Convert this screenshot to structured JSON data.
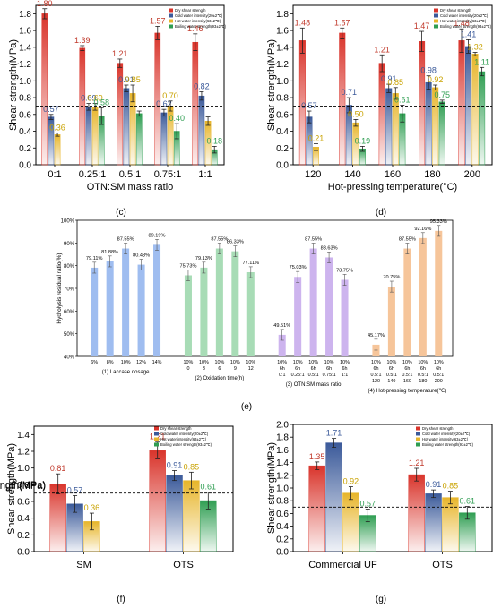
{
  "colors": {
    "dry": "#d9342b",
    "cold": "#3b5a9a",
    "hot": "#e7b52a",
    "boil": "#2f9e52",
    "ref_line": "#000000",
    "label_dry": "#c0392b",
    "label_cold": "#3b5a9a",
    "label_hot": "#c9a200",
    "label_boil": "#2f9e52"
  },
  "chart_data": [
    {
      "panel": "(c)",
      "type": "bar",
      "ylabel": "Shear strength(MPa)",
      "xlabel": "OTN:SM mass ratio",
      "ylim": [
        0,
        1.9
      ],
      "yticks": [
        "0.0",
        "0.2",
        "0.4",
        "0.6",
        "0.8",
        "1.0",
        "1.2",
        "1.4",
        "1.6",
        "1.8"
      ],
      "ref_line": 0.7,
      "categories": [
        "0:1",
        "0.25:1",
        "0.5:1",
        "0.75:1",
        "1:1"
      ],
      "legend": [
        "Dry shear strength",
        "Cold water intensity(20±2℃)",
        "Hot water intensity(63±2℃)",
        "Boiling water strength(93±2℃)"
      ],
      "series": [
        {
          "key": "dry",
          "values": [
            1.8,
            1.39,
            1.21,
            1.57,
            1.46
          ],
          "errors": [
            0.06,
            0.03,
            0.05,
            0.08,
            0.1
          ],
          "labels": [
            "1.80",
            "1.39",
            "1.21",
            "1.57",
            "1.46"
          ]
        },
        {
          "key": "cold",
          "values": [
            0.57,
            0.69,
            0.91,
            0.62,
            0.82
          ],
          "errors": [
            0.03,
            0.04,
            0.04,
            0.04,
            0.05
          ],
          "labels": [
            "0.57",
            "0.69",
            "0.91",
            "0.62",
            "0.82"
          ]
        },
        {
          "key": "hot",
          "values": [
            0.36,
            0.69,
            0.85,
            0.7,
            0.52
          ],
          "errors": [
            0.02,
            0.04,
            0.1,
            0.06,
            0.05
          ],
          "labels": [
            "0.36",
            "0.69",
            "0.85",
            "0.70",
            ""
          ]
        },
        {
          "key": "boil",
          "values": [
            null,
            0.58,
            0.61,
            0.4,
            0.18
          ],
          "errors": [
            0,
            0.1,
            0.03,
            0.09,
            0.04
          ],
          "labels": [
            "",
            "0.58",
            "",
            "0.40",
            "0.18"
          ]
        }
      ],
      "caption": "(c)"
    },
    {
      "panel": "(d)",
      "type": "bar",
      "ylabel": "Shear strength(MPa)",
      "xlabel": "Hot-pressing temperature(°C)",
      "ylim": [
        0,
        1.9
      ],
      "yticks": [
        "0.0",
        "0.2",
        "0.4",
        "0.6",
        "0.8",
        "1.0",
        "1.2",
        "1.4",
        "1.6",
        "1.8"
      ],
      "ref_line": 0.7,
      "categories": [
        "120",
        "140",
        "160",
        "180",
        "200"
      ],
      "legend": [
        "Dry shear strength",
        "Cold water intensity(20±2℃)",
        "Hot water intensity(63±2℃)",
        "Boiling water strength(93±2℃)"
      ],
      "series": [
        {
          "key": "dry",
          "values": [
            1.48,
            1.57,
            1.21,
            1.47,
            1.48
          ],
          "errors": [
            0.15,
            0.06,
            0.1,
            0.12,
            0.14
          ],
          "labels": [
            "1.48",
            "1.57",
            "1.21",
            "1.47",
            "1.48"
          ]
        },
        {
          "key": "cold",
          "values": [
            0.57,
            0.71,
            0.91,
            0.98,
            1.41
          ],
          "errors": [
            0.07,
            0.09,
            0.05,
            0.08,
            0.08
          ],
          "labels": [
            "0.57",
            "0.71",
            "0.91",
            "0.98",
            "1.41"
          ]
        },
        {
          "key": "hot",
          "values": [
            0.21,
            0.5,
            0.85,
            0.92,
            1.32
          ],
          "errors": [
            0.04,
            0.04,
            0.07,
            0.03,
            0.02
          ],
          "labels": [
            "0.21",
            "0.50",
            "0.85",
            "0.92",
            "1.32"
          ]
        },
        {
          "key": "boil",
          "values": [
            null,
            0.19,
            0.61,
            0.75,
            1.11
          ],
          "errors": [
            0,
            0.03,
            0.1,
            0.02,
            0.05
          ],
          "labels": [
            "",
            "0.19",
            "0.61",
            "0.75",
            "1.11"
          ]
        }
      ],
      "caption": "(d)"
    },
    {
      "panel": "(e)",
      "type": "bar",
      "ylabel": "Hydrolysis residual ratio(%)",
      "ylim": [
        40,
        100
      ],
      "yticks": [
        "40%",
        "50%",
        "60%",
        "70%",
        "80%",
        "90%",
        "100%"
      ],
      "groups": [
        {
          "name": "(1) Laccase dosage",
          "color": "#9fbdf0",
          "bars": [
            {
              "v": 79.11,
              "label": "79.11%",
              "tick": [
                "6%"
              ]
            },
            {
              "v": 81.88,
              "label": "81.88%",
              "tick": [
                "8%"
              ]
            },
            {
              "v": 87.55,
              "label": "87.55%",
              "tick": [
                "10%"
              ]
            },
            {
              "v": 80.43,
              "label": "80.43%",
              "tick": [
                "12%"
              ]
            },
            {
              "v": 89.19,
              "label": "89.19%",
              "tick": [
                "14%"
              ]
            }
          ]
        },
        {
          "name": "(2) Oxidation time(h)",
          "color": "#a8dcb6",
          "bars": [
            {
              "v": 75.73,
              "label": "75.73%",
              "tick": [
                "10%",
                "0"
              ]
            },
            {
              "v": 79.13,
              "label": "79.13%",
              "tick": [
                "10%",
                "3"
              ]
            },
            {
              "v": 87.55,
              "label": "87.55%",
              "tick": [
                "10%",
                "6"
              ]
            },
            {
              "v": 86.33,
              "label": "86.33%",
              "tick": [
                "10%",
                "9"
              ]
            },
            {
              "v": 77.11,
              "label": "77.11%",
              "tick": [
                "10%",
                "12"
              ]
            }
          ]
        },
        {
          "name": "(3) OTN:SM mass ratio",
          "color": "#cdb4ee",
          "bars": [
            {
              "v": 49.51,
              "label": "49.51%",
              "tick": [
                "10%",
                "6h",
                "0:1"
              ]
            },
            {
              "v": 75.03,
              "label": "75.03%",
              "tick": [
                "10%",
                "6h",
                "0.25:1"
              ]
            },
            {
              "v": 87.55,
              "label": "87.55%",
              "tick": [
                "10%",
                "6h",
                "0.5:1"
              ]
            },
            {
              "v": 83.63,
              "label": "83.63%",
              "tick": [
                "10%",
                "6h",
                "0.75:1"
              ]
            },
            {
              "v": 73.75,
              "label": "73.75%",
              "tick": [
                "10%",
                "6h",
                "1:1"
              ]
            }
          ]
        },
        {
          "name": "(4) Hot-pressing temperature(℃)",
          "color": "#f6c59a",
          "bars": [
            {
              "v": 45.17,
              "label": "45.17%",
              "tick": [
                "10%",
                "6h",
                "0.5:1",
                "120"
              ]
            },
            {
              "v": 70.75,
              "label": "70.75%",
              "tick": [
                "10%",
                "6h",
                "0.5:1",
                "140"
              ]
            },
            {
              "v": 87.55,
              "label": "87.55%",
              "tick": [
                "10%",
                "6h",
                "0.5:1",
                "160"
              ]
            },
            {
              "v": 92.16,
              "label": "92.16%",
              "tick": [
                "10%",
                "6h",
                "0.5:1",
                "180"
              ]
            },
            {
              "v": 95.33,
              "label": "95.33%",
              "tick": [
                "10%",
                "6h",
                "0.5:1",
                "200"
              ]
            }
          ]
        }
      ],
      "caption": "(e)"
    },
    {
      "panel": "(f)",
      "type": "bar",
      "ylabel": "Shear strength(MPa)",
      "ylim": [
        0,
        1.5
      ],
      "yticks": [
        "0.0",
        "0.2",
        "0.4",
        "0.6",
        "0.8",
        "1.0",
        "1.2",
        "1.4"
      ],
      "ref_line": 0.7,
      "categories": [
        "SM",
        "OTS"
      ],
      "legend": [
        "Dry shear strength",
        "Cold water intensity(20±2℃)",
        "Hot water intensity(63±2℃)",
        "Boiling water strength(93±2℃)"
      ],
      "series": [
        {
          "key": "dry",
          "values": [
            0.81,
            1.21
          ],
          "errors": [
            0.12,
            0.1
          ],
          "labels": [
            "0.81",
            "1.21"
          ]
        },
        {
          "key": "cold",
          "values": [
            0.57,
            0.91
          ],
          "errors": [
            0.1,
            0.06
          ],
          "labels": [
            "0.57",
            "0.91"
          ]
        },
        {
          "key": "hot",
          "values": [
            0.36,
            0.85
          ],
          "errors": [
            0.1,
            0.1
          ],
          "labels": [
            "0.36",
            "0.85"
          ]
        },
        {
          "key": "boil",
          "values": [
            null,
            0.61
          ],
          "errors": [
            0,
            0.1
          ],
          "labels": [
            "",
            "0.61"
          ]
        }
      ],
      "caption": "(f)"
    },
    {
      "panel": "(g)",
      "type": "bar",
      "ylabel": "Shear strength(MPa)",
      "ylim": [
        0,
        2.0
      ],
      "yticks": [
        "0.0",
        "0.2",
        "0.4",
        "0.6",
        "0.8",
        "1.0",
        "1.2",
        "1.4",
        "1.6",
        "1.8",
        "2.0"
      ],
      "ref_line": 0.7,
      "categories": [
        "Commercial UF",
        "OTS"
      ],
      "legend": [
        "Dry shear strength",
        "Cold water intensity(20±2℃)",
        "Hot water intensity(63±2℃)",
        "Boiling water strength(93±2℃)"
      ],
      "series": [
        {
          "key": "dry",
          "values": [
            1.35,
            1.21
          ],
          "errors": [
            0.06,
            0.1
          ],
          "labels": [
            "1.35",
            "1.21"
          ]
        },
        {
          "key": "cold",
          "values": [
            1.71,
            0.91
          ],
          "errors": [
            0.07,
            0.06
          ],
          "labels": [
            "1.71",
            "0.91"
          ]
        },
        {
          "key": "hot",
          "values": [
            0.92,
            0.85
          ],
          "errors": [
            0.1,
            0.1
          ],
          "labels": [
            "0.92",
            "0.85"
          ]
        },
        {
          "key": "boil",
          "values": [
            0.57,
            0.61
          ],
          "errors": [
            0.1,
            0.1
          ],
          "labels": [
            "0.57",
            "0.61"
          ]
        }
      ],
      "caption": "(g)"
    }
  ]
}
